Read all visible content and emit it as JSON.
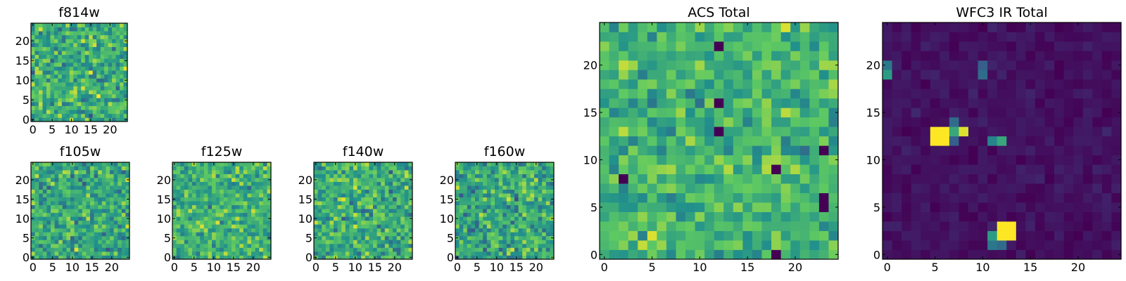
{
  "figure": {
    "background": "#ffffff"
  },
  "colormap": {
    "name": "viridis",
    "stops": [
      "#440154",
      "#3b528b",
      "#21918c",
      "#5ec962",
      "#fde725"
    ]
  },
  "chart_data": [
    {
      "type": "heatmap",
      "id": "f814w",
      "title": "f814w",
      "grid_size": [
        25,
        25
      ],
      "xlim": [
        -0.5,
        24.5
      ],
      "ylim": [
        -0.5,
        24.5
      ],
      "origin": "lower",
      "xticks": [
        0,
        5,
        10,
        15,
        20
      ],
      "yticks": [
        0,
        5,
        10,
        15,
        20
      ],
      "value_range": [
        0,
        1
      ],
      "mean_level": 0.62,
      "spread": 0.26,
      "seed": 11,
      "hot_pixels": []
    },
    {
      "type": "heatmap",
      "id": "f105w",
      "title": "f105w",
      "grid_size": [
        25,
        25
      ],
      "xlim": [
        -0.5,
        24.5
      ],
      "ylim": [
        -0.5,
        24.5
      ],
      "origin": "lower",
      "xticks": [
        0,
        5,
        10,
        15,
        20
      ],
      "yticks": [
        0,
        5,
        10,
        15,
        20
      ],
      "value_range": [
        0,
        1
      ],
      "mean_level": 0.6,
      "spread": 0.24,
      "seed": 23,
      "hot_pixels": []
    },
    {
      "type": "heatmap",
      "id": "f125w",
      "title": "f125w",
      "grid_size": [
        25,
        25
      ],
      "xlim": [
        -0.5,
        24.5
      ],
      "ylim": [
        -0.5,
        24.5
      ],
      "origin": "lower",
      "xticks": [
        0,
        5,
        10,
        15,
        20
      ],
      "yticks": [
        0,
        5,
        10,
        15,
        20
      ],
      "value_range": [
        0,
        1
      ],
      "mean_level": 0.64,
      "spread": 0.22,
      "seed": 37,
      "hot_pixels": []
    },
    {
      "type": "heatmap",
      "id": "f140w",
      "title": "f140w",
      "grid_size": [
        25,
        25
      ],
      "xlim": [
        -0.5,
        24.5
      ],
      "ylim": [
        -0.5,
        24.5
      ],
      "origin": "lower",
      "xticks": [
        0,
        5,
        10,
        15,
        20
      ],
      "yticks": [
        0,
        5,
        10,
        15,
        20
      ],
      "value_range": [
        0,
        1
      ],
      "mean_level": 0.62,
      "spread": 0.24,
      "seed": 41,
      "hot_pixels": []
    },
    {
      "type": "heatmap",
      "id": "f160w",
      "title": "f160w",
      "grid_size": [
        25,
        25
      ],
      "xlim": [
        -0.5,
        24.5
      ],
      "ylim": [
        -0.5,
        24.5
      ],
      "origin": "lower",
      "xticks": [
        0,
        5,
        10,
        15,
        20
      ],
      "yticks": [
        0,
        5,
        10,
        15,
        20
      ],
      "value_range": [
        0,
        1
      ],
      "mean_level": 0.6,
      "spread": 0.25,
      "seed": 53,
      "hot_pixels": []
    },
    {
      "type": "heatmap",
      "id": "acs-total",
      "title": "ACS Total",
      "grid_size": [
        25,
        25
      ],
      "xlim": [
        -0.5,
        24.5
      ],
      "ylim": [
        -0.5,
        24.5
      ],
      "origin": "lower",
      "xticks": [
        0,
        5,
        10,
        15,
        20
      ],
      "yticks": [
        0,
        5,
        10,
        15,
        20
      ],
      "value_range": [
        0,
        1
      ],
      "mean_level": 0.66,
      "spread": 0.2,
      "seed": 67,
      "hot_pixels": [
        {
          "x": 12,
          "y": 16,
          "value": 0.0
        },
        {
          "x": 12,
          "y": 13,
          "value": 0.0
        },
        {
          "x": 18,
          "y": 9,
          "value": 0.0
        },
        {
          "x": 23,
          "y": 11,
          "value": 0.0
        },
        {
          "x": 23,
          "y": 5,
          "value": 0.0
        },
        {
          "x": 23,
          "y": 6,
          "value": 0.0
        },
        {
          "x": 18,
          "y": 0,
          "value": 0.0
        },
        {
          "x": 2,
          "y": 8,
          "value": 0.0
        },
        {
          "x": 12,
          "y": 22,
          "value": 0.0
        }
      ]
    },
    {
      "type": "heatmap",
      "id": "wfc3-ir-total",
      "title": "WFC3 IR Total",
      "grid_size": [
        25,
        25
      ],
      "xlim": [
        -0.5,
        24.5
      ],
      "ylim": [
        -0.5,
        24.5
      ],
      "origin": "lower",
      "xticks": [
        0,
        5,
        10,
        15,
        20
      ],
      "yticks": [
        0,
        5,
        10,
        15,
        20
      ],
      "value_range": [
        0,
        1
      ],
      "mean_level": 0.05,
      "spread": 0.05,
      "seed": 79,
      "hot_pixels": [
        {
          "x": 5,
          "y": 12,
          "value": 1.0
        },
        {
          "x": 6,
          "y": 12,
          "value": 1.0
        },
        {
          "x": 5,
          "y": 13,
          "value": 1.0
        },
        {
          "x": 6,
          "y": 13,
          "value": 1.0
        },
        {
          "x": 7,
          "y": 13,
          "value": 0.6
        },
        {
          "x": 8,
          "y": 13,
          "value": 0.95
        },
        {
          "x": 7,
          "y": 14,
          "value": 0.35
        },
        {
          "x": 7,
          "y": 12,
          "value": 0.3
        },
        {
          "x": 11,
          "y": 12,
          "value": 0.45
        },
        {
          "x": 12,
          "y": 12,
          "value": 0.6
        },
        {
          "x": 10,
          "y": 19,
          "value": 0.35
        },
        {
          "x": 10,
          "y": 20,
          "value": 0.3
        },
        {
          "x": 0,
          "y": 19,
          "value": 0.55
        },
        {
          "x": 0,
          "y": 20,
          "value": 0.4
        },
        {
          "x": 12,
          "y": 2,
          "value": 1.0
        },
        {
          "x": 13,
          "y": 2,
          "value": 1.0
        },
        {
          "x": 12,
          "y": 3,
          "value": 1.0
        },
        {
          "x": 13,
          "y": 3,
          "value": 1.0
        },
        {
          "x": 11,
          "y": 2,
          "value": 0.55
        },
        {
          "x": 11,
          "y": 1,
          "value": 0.4
        },
        {
          "x": 12,
          "y": 1,
          "value": 0.35
        }
      ]
    }
  ]
}
